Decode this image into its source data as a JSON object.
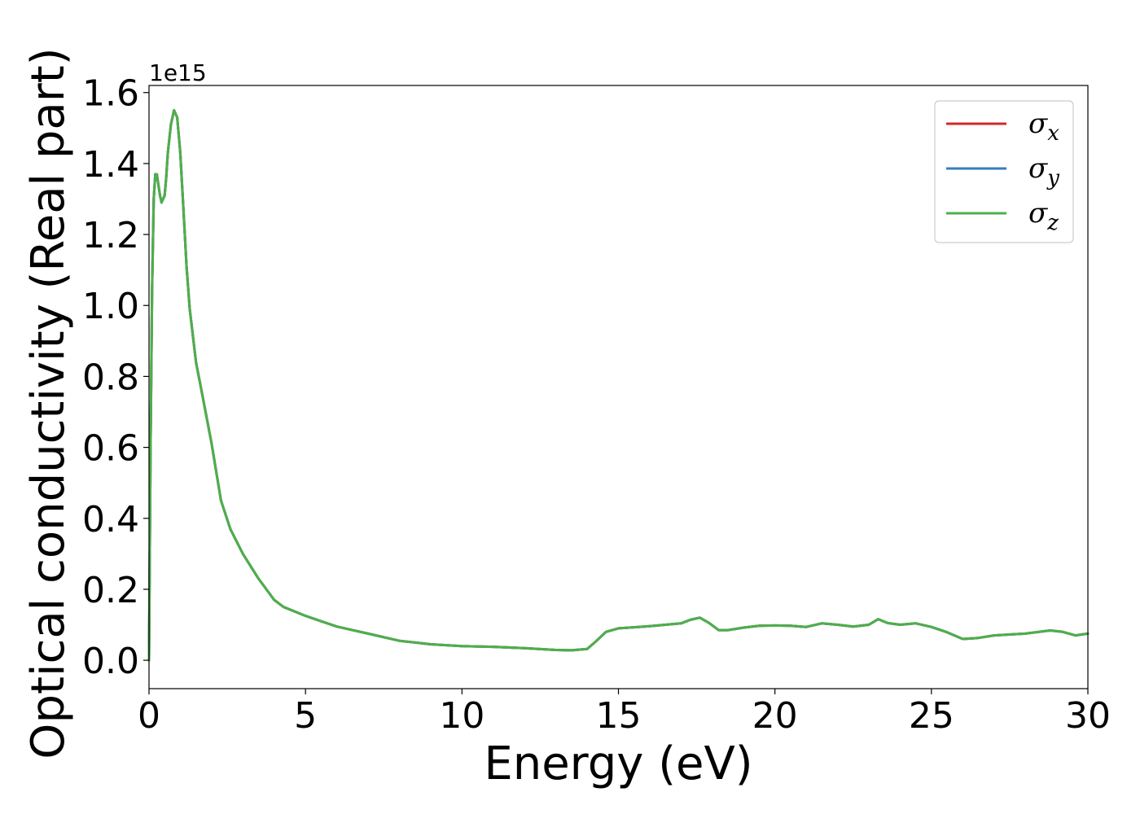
{
  "chart_data": {
    "type": "line",
    "xlabel": "Energy (eV)",
    "ylabel": "Optical conductivity (Real part)",
    "y_offset_label": "1e15",
    "xlim": [
      0,
      30
    ],
    "ylim": [
      -0.08,
      1.62
    ],
    "x_ticks": [
      0,
      5,
      10,
      15,
      20,
      25,
      30
    ],
    "x_tick_labels": [
      "0",
      "5",
      "10",
      "15",
      "20",
      "25",
      "30"
    ],
    "y_ticks": [
      0.0,
      0.2,
      0.4,
      0.6,
      0.8,
      1.0,
      1.2,
      1.4,
      1.6
    ],
    "y_tick_labels": [
      "0.0",
      "0.2",
      "0.4",
      "0.6",
      "0.8",
      "1.0",
      "1.2",
      "1.4",
      "1.6"
    ],
    "grid": false,
    "legend_position": "top-right",
    "x": [
      0,
      0.05,
      0.1,
      0.15,
      0.2,
      0.25,
      0.3,
      0.35,
      0.4,
      0.5,
      0.55,
      0.6,
      0.7,
      0.8,
      0.9,
      1.0,
      1.1,
      1.2,
      1.3,
      1.5,
      1.7,
      2.0,
      2.3,
      2.6,
      3.0,
      3.5,
      4.0,
      4.3,
      5.0,
      5.5,
      6.0,
      6.5,
      7.0,
      8.0,
      9.0,
      10.0,
      11.0,
      12.0,
      13.0,
      13.5,
      14.0,
      14.3,
      14.6,
      15.0,
      15.5,
      16.0,
      16.5,
      17.0,
      17.3,
      17.6,
      17.9,
      18.2,
      18.5,
      19.0,
      19.5,
      20.0,
      20.5,
      21.0,
      21.5,
      22.0,
      22.5,
      23.0,
      23.3,
      23.6,
      24.0,
      24.5,
      25.0,
      25.5,
      26.0,
      26.5,
      27.0,
      28.0,
      28.8,
      29.2,
      29.6,
      30.0
    ],
    "series": [
      {
        "name": "σx",
        "label_base": "σ",
        "label_sub": "x",
        "color": "#d62728",
        "values": [
          0.0,
          0.6,
          1.05,
          1.3,
          1.37,
          1.37,
          1.34,
          1.31,
          1.29,
          1.31,
          1.36,
          1.43,
          1.51,
          1.55,
          1.53,
          1.43,
          1.27,
          1.11,
          0.99,
          0.84,
          0.75,
          0.61,
          0.45,
          0.37,
          0.3,
          0.23,
          0.17,
          0.15,
          0.125,
          0.11,
          0.095,
          0.085,
          0.075,
          0.055,
          0.045,
          0.04,
          0.038,
          0.034,
          0.029,
          0.028,
          0.032,
          0.055,
          0.08,
          0.09,
          0.093,
          0.096,
          0.1,
          0.104,
          0.114,
          0.12,
          0.105,
          0.085,
          0.085,
          0.092,
          0.097,
          0.098,
          0.097,
          0.094,
          0.104,
          0.1,
          0.095,
          0.1,
          0.116,
          0.105,
          0.1,
          0.104,
          0.094,
          0.079,
          0.06,
          0.063,
          0.07,
          0.075,
          0.084,
          0.08,
          0.07,
          0.075
        ]
      },
      {
        "name": "σy",
        "label_base": "σ",
        "label_sub": "y",
        "color": "#377eb8",
        "values": [
          0.0,
          0.6,
          1.05,
          1.3,
          1.37,
          1.37,
          1.34,
          1.31,
          1.29,
          1.31,
          1.36,
          1.43,
          1.51,
          1.55,
          1.53,
          1.43,
          1.27,
          1.11,
          0.99,
          0.84,
          0.75,
          0.61,
          0.45,
          0.37,
          0.3,
          0.23,
          0.17,
          0.15,
          0.125,
          0.11,
          0.095,
          0.085,
          0.075,
          0.055,
          0.045,
          0.04,
          0.038,
          0.034,
          0.029,
          0.028,
          0.032,
          0.055,
          0.08,
          0.09,
          0.093,
          0.096,
          0.1,
          0.104,
          0.114,
          0.12,
          0.105,
          0.085,
          0.085,
          0.092,
          0.097,
          0.098,
          0.097,
          0.094,
          0.104,
          0.1,
          0.095,
          0.1,
          0.116,
          0.105,
          0.1,
          0.104,
          0.094,
          0.079,
          0.06,
          0.063,
          0.07,
          0.075,
          0.084,
          0.08,
          0.07,
          0.075
        ]
      },
      {
        "name": "σz",
        "label_base": "σ",
        "label_sub": "z",
        "color": "#4daf4a",
        "values": [
          0.0,
          0.6,
          1.05,
          1.3,
          1.37,
          1.37,
          1.34,
          1.31,
          1.29,
          1.31,
          1.36,
          1.43,
          1.51,
          1.55,
          1.53,
          1.43,
          1.27,
          1.11,
          0.99,
          0.84,
          0.75,
          0.61,
          0.45,
          0.37,
          0.3,
          0.23,
          0.17,
          0.15,
          0.125,
          0.11,
          0.095,
          0.085,
          0.075,
          0.055,
          0.045,
          0.04,
          0.038,
          0.034,
          0.029,
          0.028,
          0.032,
          0.055,
          0.08,
          0.09,
          0.093,
          0.096,
          0.1,
          0.104,
          0.114,
          0.12,
          0.105,
          0.085,
          0.085,
          0.092,
          0.097,
          0.098,
          0.097,
          0.094,
          0.104,
          0.1,
          0.095,
          0.1,
          0.116,
          0.105,
          0.1,
          0.104,
          0.094,
          0.079,
          0.06,
          0.063,
          0.07,
          0.075,
          0.084,
          0.08,
          0.07,
          0.075
        ]
      }
    ]
  }
}
